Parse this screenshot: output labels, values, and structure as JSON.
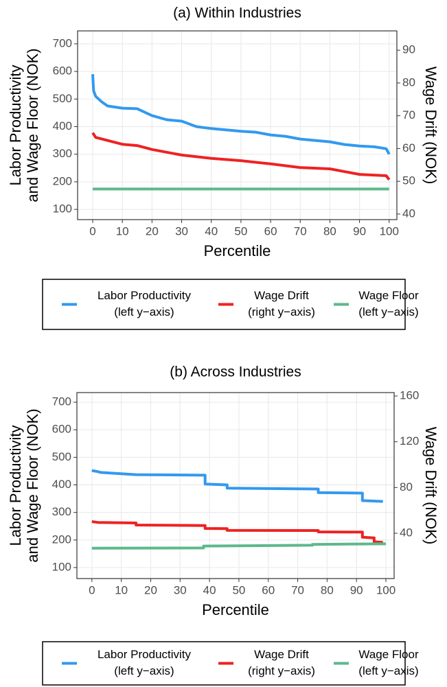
{
  "chart_data": [
    {
      "type": "line",
      "title": "(a)  Within Industries",
      "xlabel": "Percentile",
      "ylabel": [
        "Labor Productivity",
        "and Wage Floor (NOK)"
      ],
      "y2label": "Wage Drift (NOK)",
      "xlim": [
        -5.1,
        102.6
      ],
      "xticks": [
        0,
        10,
        20,
        30,
        40,
        50,
        60,
        70,
        80,
        90,
        100
      ],
      "ylim": [
        63,
        747
      ],
      "yticks": [
        100,
        200,
        300,
        400,
        500,
        600,
        700
      ],
      "y2lim": [
        38.3,
        95.9
      ],
      "y2ticks": [
        40,
        50,
        60,
        70,
        80,
        90
      ],
      "grid": true,
      "series": [
        {
          "name": "Labor Productivity",
          "legend_note": "(left y−axis)",
          "color": "#3399ee",
          "x": [
            0,
            0.3,
            1,
            3,
            5,
            10,
            15,
            20,
            25,
            30,
            35,
            40,
            50,
            55,
            60,
            65,
            70,
            80,
            85,
            90,
            95,
            99,
            100
          ],
          "values": [
            590,
            530,
            510,
            490,
            475,
            467,
            465,
            440,
            425,
            420,
            400,
            393,
            383,
            380,
            370,
            365,
            355,
            345,
            335,
            330,
            327,
            320,
            300
          ]
        },
        {
          "name": "Wage Drift",
          "legend_note": "(right y−axis)",
          "color": "#ee2222",
          "axis": "y2",
          "x": [
            0,
            1,
            10,
            15,
            20,
            30,
            40,
            50,
            60,
            70,
            80,
            90,
            99,
            100
          ],
          "values": [
            64.8,
            63.4,
            61.3,
            60.9,
            59.7,
            58,
            57,
            56.3,
            55.3,
            54.2,
            53.8,
            52.1,
            51.7,
            50.5
          ]
        },
        {
          "name": "Wage Floor",
          "legend_note": "(left y−axis)",
          "color": "#5db88a",
          "x": [
            0,
            100
          ],
          "values": [
            174,
            174
          ]
        }
      ]
    },
    {
      "type": "line",
      "title": "(b)  Across Industries",
      "xlabel": "Percentile",
      "ylabel": [
        "Labor Productivity",
        "and Wage Floor (NOK)"
      ],
      "y2label": "Wage Drift (NOK)",
      "xlim": [
        -5.1,
        102.8
      ],
      "xticks": [
        0,
        10,
        20,
        30,
        40,
        50,
        60,
        70,
        80,
        90,
        100
      ],
      "ylim": [
        60,
        735
      ],
      "yticks": [
        100,
        200,
        300,
        400,
        500,
        600,
        700
      ],
      "y2lim": [
        0.4,
        163
      ],
      "y2ticks": [
        40,
        80,
        120,
        160
      ],
      "grid": true,
      "series": [
        {
          "name": "Labor Productivity",
          "legend_note": "(left y−axis)",
          "color": "#3399ee",
          "x": [
            0,
            2,
            3,
            15,
            38.5,
            38.5,
            46,
            46,
            77,
            77,
            92,
            92,
            99
          ],
          "values": [
            452,
            448,
            445,
            437,
            435,
            403,
            400,
            388,
            385,
            372,
            370,
            343,
            340
          ]
        },
        {
          "name": "Wage Drift",
          "legend_note": "(right y−axis)",
          "color": "#ee2222",
          "axis": "y2",
          "x": [
            0,
            2,
            15,
            15,
            38.5,
            38.5,
            46,
            46,
            77,
            77,
            92,
            92,
            96,
            96,
            99
          ],
          "values": [
            50.2,
            49.5,
            49,
            47.2,
            46.8,
            44.2,
            44,
            42.6,
            42.4,
            41.2,
            41,
            36.5,
            36,
            32.5,
            32
          ]
        },
        {
          "name": "Wage Floor",
          "legend_note": "(left y−axis)",
          "color": "#5db88a",
          "x": [
            0,
            38,
            38,
            75,
            75,
            100
          ],
          "values": [
            170,
            171,
            178,
            181,
            184,
            186
          ]
        }
      ]
    }
  ]
}
